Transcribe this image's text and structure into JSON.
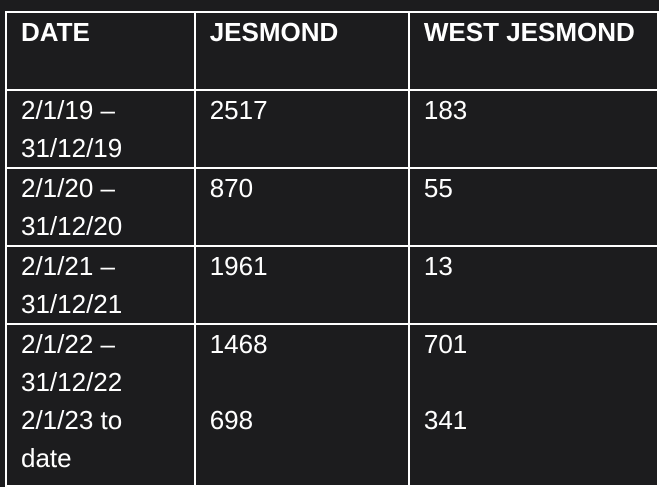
{
  "table": {
    "headers": [
      "DATE",
      "JESMOND",
      "WEST JESMOND"
    ],
    "rows": [
      [
        "2/1/19 – 31/12/19",
        "2517",
        "183"
      ],
      [
        "2/1/20 – 31/12/20",
        "870",
        "55"
      ],
      [
        "2/1/21 – 31/12/21",
        "1961",
        "13"
      ],
      [
        "2/1/22 – 31/12/22",
        "1468",
        "701"
      ],
      [
        "2/1/23 to date",
        "698",
        "341"
      ]
    ]
  }
}
